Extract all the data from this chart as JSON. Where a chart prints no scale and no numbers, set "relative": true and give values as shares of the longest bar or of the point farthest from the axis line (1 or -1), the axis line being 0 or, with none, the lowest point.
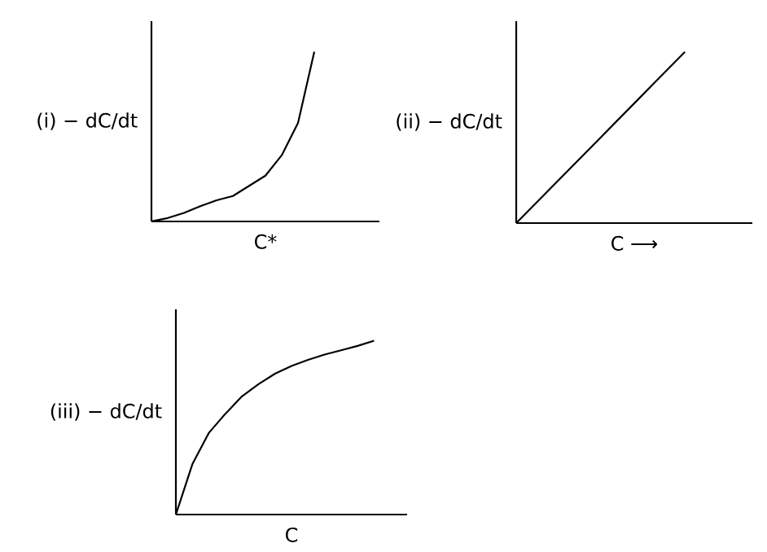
{
  "chart_data": [
    {
      "type": "line",
      "relative": true,
      "color": "#000000",
      "ylabel": "(i) − dC/dt",
      "xlabel": "C*",
      "categories": [
        null,
        null,
        null,
        null,
        null,
        null,
        null,
        null,
        null,
        null,
        null,
        null,
        null,
        null,
        null
      ],
      "values": [
        0,
        0.02,
        0.05,
        0.09,
        0.125,
        0.15,
        0.21,
        0.27,
        0.39,
        0.58,
        1,
        null,
        null,
        null,
        null
      ]
    },
    {
      "type": "line",
      "relative": true,
      "color": "#000000",
      "ylabel": "(ii) − dC/dt",
      "xlabel": "C ⟶",
      "categories": [
        null,
        null,
        null,
        null,
        null,
        null,
        null,
        null,
        null,
        null,
        null,
        null,
        null,
        null,
        null
      ],
      "values": [
        0,
        0.1,
        0.2,
        0.3,
        0.4,
        0.5,
        0.6,
        0.7,
        0.8,
        0.9,
        1,
        null,
        null,
        null,
        null
      ]
    },
    {
      "type": "line",
      "relative": true,
      "color": "#000000",
      "ylabel": "(iii) − dC/dt",
      "xlabel": "C",
      "categories": [
        null,
        null,
        null,
        null,
        null,
        null,
        null,
        null,
        null,
        null,
        null,
        null,
        null,
        null,
        null
      ],
      "values": [
        0,
        0.29,
        0.47,
        0.58,
        0.68,
        0.75,
        0.81,
        0.855,
        0.89,
        0.92,
        0.945,
        0.97,
        1,
        null,
        null
      ]
    }
  ]
}
